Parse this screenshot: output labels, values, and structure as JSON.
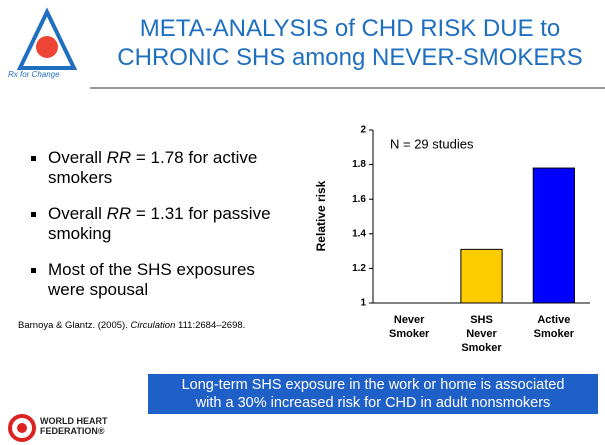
{
  "header": {
    "title_lines": [
      "META-ANALYSIS of CHD RISK DUE to",
      "CHRONIC SHS among NEVER-SMOKERS"
    ],
    "logo_caption": "Rx for Change"
  },
  "bullets": [
    {
      "pre": "Overall ",
      "em": "RR",
      "post": " = 1.78 for active smokers"
    },
    {
      "pre": "Overall ",
      "em": "RR",
      "post": " = 1.31 for passive smoking"
    },
    {
      "text": "Most of the SHS exposures were spousal"
    }
  ],
  "citation": {
    "authors": "Barnoya & Glantz. (2005). ",
    "journal": "Circulation",
    "pages": " 111:2684–2698."
  },
  "chart_data": {
    "type": "bar",
    "categories": [
      "Never Smoker",
      "SHS Never Smoker",
      "Active Smoker"
    ],
    "values": [
      1,
      1.31,
      1.78
    ],
    "colors": [
      "#ffffff",
      "#ffcc00",
      "#0000ff"
    ],
    "ylabel": "Relative risk",
    "annotation": "N = 29 studies",
    "ylim": [
      1,
      2
    ],
    "yticks": [
      1,
      1.2,
      1.4,
      1.6,
      1.8,
      2
    ]
  },
  "banner": {
    "lines": [
      "Long-term SHS exposure in the work or home is associated",
      "with a 30% increased risk for CHD in adult nonsmokers"
    ]
  },
  "footer": {
    "lines": [
      "WORLD HEART",
      "FEDERATION®"
    ]
  }
}
